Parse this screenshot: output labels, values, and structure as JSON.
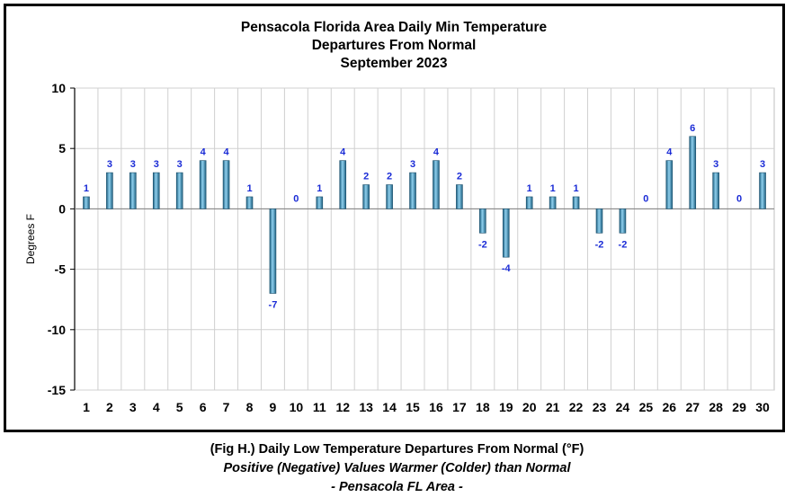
{
  "chart_data": {
    "type": "bar",
    "title": [
      "Pensacola Florida Area Daily Min Temperature",
      "Departures From Normal",
      "September 2023"
    ],
    "xlabel": "",
    "ylabel": "Degrees F",
    "categories": [
      "1",
      "2",
      "3",
      "4",
      "5",
      "6",
      "7",
      "8",
      "9",
      "10",
      "11",
      "12",
      "13",
      "14",
      "15",
      "16",
      "17",
      "18",
      "19",
      "20",
      "21",
      "22",
      "23",
      "24",
      "25",
      "26",
      "27",
      "28",
      "29",
      "30"
    ],
    "values": [
      1,
      3,
      3,
      3,
      3,
      4,
      4,
      1,
      -7,
      0,
      1,
      4,
      2,
      2,
      3,
      4,
      2,
      -2,
      -4,
      1,
      1,
      1,
      -2,
      -2,
      0,
      4,
      6,
      3,
      0,
      3
    ],
    "ylim": [
      -15,
      10
    ],
    "yticks": [
      10,
      5,
      0,
      -5,
      -10,
      -15
    ],
    "grid": true,
    "bar_color": "#3a8fb8",
    "label_color": "#1a2bd6"
  },
  "caption": {
    "line1": "(Fig H.) Daily Low Temperature Departures From Normal (°F)",
    "line2": "Positive (Negative) Values Warmer (Colder) than Normal",
    "line3": "- Pensacola FL Area -"
  }
}
